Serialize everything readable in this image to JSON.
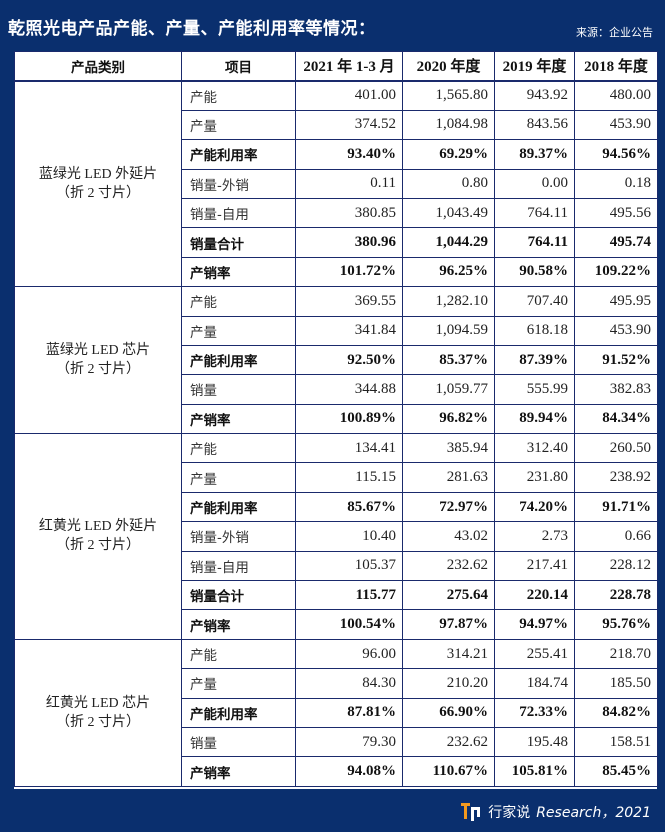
{
  "title": "乾照光电产品产能、产量、产能利用率等情况：",
  "source": "来源：企业公告",
  "headers": [
    "产品类别",
    "项目",
    "2021 年 1-3 月",
    "2020 年度",
    "2019 年度",
    "2018 年度"
  ],
  "groups": [
    {
      "category_line1": "蓝绿光 LED 外延片",
      "category_line2": "（折 2 寸片）",
      "rows": [
        {
          "item": "产能",
          "bold": false,
          "values": [
            "401.00",
            "1,565.80",
            "943.92",
            "480.00"
          ]
        },
        {
          "item": "产量",
          "bold": false,
          "values": [
            "374.52",
            "1,084.98",
            "843.56",
            "453.90"
          ]
        },
        {
          "item": "产能利用率",
          "bold": true,
          "values": [
            "93.40%",
            "69.29%",
            "89.37%",
            "94.56%"
          ]
        },
        {
          "item": "销量-外销",
          "bold": false,
          "values": [
            "0.11",
            "0.80",
            "0.00",
            "0.18"
          ]
        },
        {
          "item": "销量-自用",
          "bold": false,
          "values": [
            "380.85",
            "1,043.49",
            "764.11",
            "495.56"
          ]
        },
        {
          "item": "销量合计",
          "bold": true,
          "values": [
            "380.96",
            "1,044.29",
            "764.11",
            "495.74"
          ]
        },
        {
          "item": "产销率",
          "bold": true,
          "values": [
            "101.72%",
            "96.25%",
            "90.58%",
            "109.22%"
          ]
        }
      ]
    },
    {
      "category_line1": "蓝绿光 LED 芯片",
      "category_line2": "（折 2 寸片）",
      "rows": [
        {
          "item": "产能",
          "bold": false,
          "values": [
            "369.55",
            "1,282.10",
            "707.40",
            "495.95"
          ]
        },
        {
          "item": "产量",
          "bold": false,
          "values": [
            "341.84",
            "1,094.59",
            "618.18",
            "453.90"
          ]
        },
        {
          "item": "产能利用率",
          "bold": true,
          "values": [
            "92.50%",
            "85.37%",
            "87.39%",
            "91.52%"
          ]
        },
        {
          "item": "销量",
          "bold": false,
          "values": [
            "344.88",
            "1,059.77",
            "555.99",
            "382.83"
          ]
        },
        {
          "item": "产销率",
          "bold": true,
          "values": [
            "100.89%",
            "96.82%",
            "89.94%",
            "84.34%"
          ]
        }
      ]
    },
    {
      "category_line1": "红黄光 LED 外延片",
      "category_line2": "（折 2 寸片）",
      "rows": [
        {
          "item": "产能",
          "bold": false,
          "values": [
            "134.41",
            "385.94",
            "312.40",
            "260.50"
          ]
        },
        {
          "item": "产量",
          "bold": false,
          "values": [
            "115.15",
            "281.63",
            "231.80",
            "238.92"
          ]
        },
        {
          "item": "产能利用率",
          "bold": true,
          "values": [
            "85.67%",
            "72.97%",
            "74.20%",
            "91.71%"
          ]
        },
        {
          "item": "销量-外销",
          "bold": false,
          "values": [
            "10.40",
            "43.02",
            "2.73",
            "0.66"
          ]
        },
        {
          "item": "销量-自用",
          "bold": false,
          "values": [
            "105.37",
            "232.62",
            "217.41",
            "228.12"
          ]
        },
        {
          "item": "销量合计",
          "bold": true,
          "values": [
            "115.77",
            "275.64",
            "220.14",
            "228.78"
          ]
        },
        {
          "item": "产销率",
          "bold": true,
          "values": [
            "100.54%",
            "97.87%",
            "94.97%",
            "95.76%"
          ]
        }
      ]
    },
    {
      "category_line1": "红黄光 LED 芯片",
      "category_line2": "（折 2 寸片）",
      "rows": [
        {
          "item": "产能",
          "bold": false,
          "values": [
            "96.00",
            "314.21",
            "255.41",
            "218.70"
          ]
        },
        {
          "item": "产量",
          "bold": false,
          "values": [
            "84.30",
            "210.20",
            "184.74",
            "185.50"
          ]
        },
        {
          "item": "产能利用率",
          "bold": true,
          "values": [
            "87.81%",
            "66.90%",
            "72.33%",
            "84.82%"
          ]
        },
        {
          "item": "销量",
          "bold": false,
          "values": [
            "79.30",
            "232.62",
            "195.48",
            "158.51"
          ]
        },
        {
          "item": "产销率",
          "bold": true,
          "values": [
            "94.08%",
            "110.67%",
            "105.81%",
            "85.45%"
          ]
        }
      ]
    }
  ],
  "footer": {
    "brand": "行家说",
    "brand_suffix": "Research，2021",
    "logo_icon": "brand-logo-icon"
  },
  "colors": {
    "background": "#0a2f6e",
    "table_border": "#1a2a6c",
    "logo_orange": "#f39a1f"
  }
}
